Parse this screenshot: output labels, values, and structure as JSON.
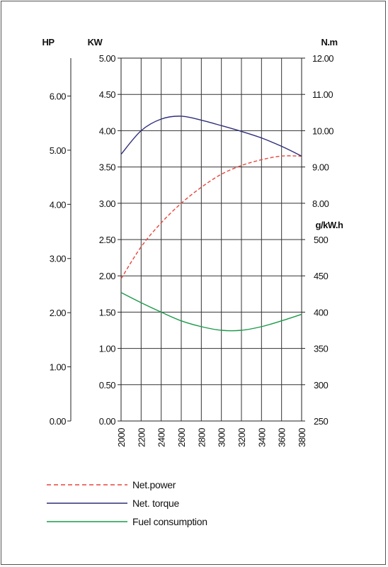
{
  "chart_data": {
    "type": "line",
    "x": [
      2000,
      2200,
      2400,
      2600,
      2800,
      3000,
      3200,
      3400,
      3600,
      3800
    ],
    "xlim": [
      2000,
      3800
    ],
    "axes": {
      "hp": {
        "unit": "HP",
        "ticks": [
          "0.00",
          "1.00",
          "2.00",
          "3.00",
          "4.00",
          "5.00",
          "6.00"
        ],
        "ylim": [
          0,
          6.7
        ]
      },
      "kw": {
        "unit": "KW",
        "ticks": [
          "0.00",
          "0.50",
          "1.00",
          "1.50",
          "2.00",
          "2.50",
          "3.00",
          "3.50",
          "4.00",
          "4.50",
          "5.00"
        ],
        "ylim": [
          0,
          5
        ]
      },
      "torque": {
        "unit": "N.m",
        "ticks": [
          "8.00",
          "9.00",
          "10.00",
          "11.00",
          "12.00"
        ],
        "ylim": [
          8,
          12
        ]
      },
      "fuel": {
        "unit": "g/kW.h",
        "ticks": [
          "250",
          "300",
          "350",
          "400",
          "450",
          "500"
        ],
        "ylim": [
          250,
          500
        ]
      }
    },
    "series": [
      {
        "name": "Net.power",
        "axis": "kw",
        "color": "#e8453c",
        "dash": true,
        "x": [
          2000,
          2200,
          2400,
          2600,
          2800,
          3000,
          3200,
          3400,
          3600,
          3800
        ],
        "values": [
          1.96,
          2.4,
          2.73,
          3.0,
          3.22,
          3.4,
          3.52,
          3.6,
          3.65,
          3.65
        ]
      },
      {
        "name": "Net. torque",
        "axis": "torque",
        "color": "#2e2f7a",
        "dash": false,
        "x": [
          2000,
          2200,
          2400,
          2600,
          2800,
          3000,
          3200,
          3400,
          3600,
          3800
        ],
        "values": [
          9.35,
          10.0,
          10.32,
          10.4,
          10.29,
          10.14,
          9.98,
          9.8,
          9.57,
          9.3
        ]
      },
      {
        "name": "Fuel consumption",
        "axis": "fuel",
        "color": "#1a9a4a",
        "dash": false,
        "x": [
          2000,
          2200,
          2400,
          2600,
          2800,
          3000,
          3200,
          3400,
          3600,
          3800
        ],
        "values": [
          427,
          413,
          400,
          388,
          380,
          375,
          375,
          380,
          388,
          397
        ]
      }
    ]
  }
}
